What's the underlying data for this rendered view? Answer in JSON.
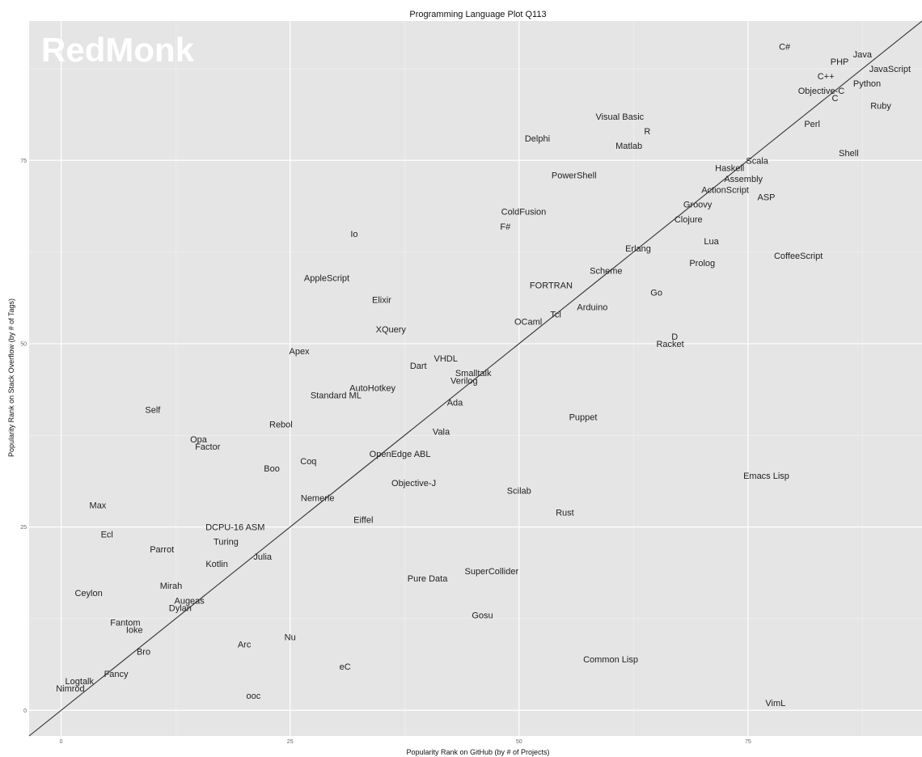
{
  "chart_data": {
    "type": "scatter",
    "title": "Programming Language Plot Q113",
    "watermark": "RedMonk",
    "xlabel": "Popularity Rank on GitHub (by # of Projects)",
    "ylabel": "Popularity Rank on Stack Overflow (by # of Tags)",
    "xlim": [
      -3.5,
      94
    ],
    "ylim": [
      -3.5,
      94
    ],
    "xticks": [
      0,
      25,
      50,
      75
    ],
    "yticks": [
      0,
      25,
      50,
      75
    ],
    "x_tick_labels": [
      "0",
      "25",
      "50",
      "75"
    ],
    "y_tick_labels": [
      "0",
      "25",
      "50",
      "75"
    ],
    "grid": true,
    "reference_line": "y = x",
    "colors": {
      "panel": "#e5e5e5",
      "grid": "#ffffff",
      "text": "#222222",
      "line": "#333333"
    },
    "points": [
      {
        "label": "C#",
        "x": 79,
        "y": 90.5
      },
      {
        "label": "PHP",
        "x": 85,
        "y": 88.5
      },
      {
        "label": "Java",
        "x": 87.5,
        "y": 89.5
      },
      {
        "label": "JavaScript",
        "x": 90.5,
        "y": 87.5
      },
      {
        "label": "C++",
        "x": 83.5,
        "y": 86.5
      },
      {
        "label": "Python",
        "x": 88,
        "y": 85.5
      },
      {
        "label": "Objective-C",
        "x": 83,
        "y": 84.5
      },
      {
        "label": "C",
        "x": 84.5,
        "y": 83.5
      },
      {
        "label": "Ruby",
        "x": 89.5,
        "y": 82.5
      },
      {
        "label": "Visual Basic",
        "x": 61,
        "y": 81
      },
      {
        "label": "R",
        "x": 64,
        "y": 79
      },
      {
        "label": "Perl",
        "x": 82,
        "y": 80
      },
      {
        "label": "Delphi",
        "x": 52,
        "y": 78
      },
      {
        "label": "Matlab",
        "x": 62,
        "y": 77
      },
      {
        "label": "Shell",
        "x": 86,
        "y": 76
      },
      {
        "label": "Scala",
        "x": 76,
        "y": 75
      },
      {
        "label": "Haskell",
        "x": 73,
        "y": 74
      },
      {
        "label": "PowerShell",
        "x": 56,
        "y": 73
      },
      {
        "label": "Assembly",
        "x": 74.5,
        "y": 72.5
      },
      {
        "label": "ActionScript",
        "x": 72.5,
        "y": 71
      },
      {
        "label": "ASP",
        "x": 77,
        "y": 70
      },
      {
        "label": "Groovy",
        "x": 69.5,
        "y": 69
      },
      {
        "label": "ColdFusion",
        "x": 50.5,
        "y": 68
      },
      {
        "label": "Clojure",
        "x": 68.5,
        "y": 67
      },
      {
        "label": "F#",
        "x": 48.5,
        "y": 66
      },
      {
        "label": "Io",
        "x": 32,
        "y": 65
      },
      {
        "label": "Lua",
        "x": 71,
        "y": 64
      },
      {
        "label": "Erlang",
        "x": 63,
        "y": 63
      },
      {
        "label": "CoffeeScript",
        "x": 80.5,
        "y": 62
      },
      {
        "label": "Prolog",
        "x": 70,
        "y": 61
      },
      {
        "label": "Scheme",
        "x": 59.5,
        "y": 60
      },
      {
        "label": "AppleScript",
        "x": 29,
        "y": 59
      },
      {
        "label": "FORTRAN",
        "x": 53.5,
        "y": 58
      },
      {
        "label": "Go",
        "x": 65,
        "y": 57
      },
      {
        "label": "Elixir",
        "x": 35,
        "y": 56
      },
      {
        "label": "Arduino",
        "x": 58,
        "y": 55
      },
      {
        "label": "Tcl",
        "x": 54,
        "y": 54
      },
      {
        "label": "OCaml",
        "x": 51,
        "y": 53
      },
      {
        "label": "XQuery",
        "x": 36,
        "y": 52
      },
      {
        "label": "D",
        "x": 67,
        "y": 51
      },
      {
        "label": "Racket",
        "x": 66.5,
        "y": 50
      },
      {
        "label": "Apex",
        "x": 26,
        "y": 49
      },
      {
        "label": "VHDL",
        "x": 42,
        "y": 48
      },
      {
        "label": "Dart",
        "x": 39,
        "y": 47
      },
      {
        "label": "Smalltalk",
        "x": 45,
        "y": 46
      },
      {
        "label": "Verilog",
        "x": 44,
        "y": 45
      },
      {
        "label": "AutoHotkey",
        "x": 34,
        "y": 44
      },
      {
        "label": "Standard ML",
        "x": 30,
        "y": 43
      },
      {
        "label": "Ada",
        "x": 43,
        "y": 42
      },
      {
        "label": "Self",
        "x": 10,
        "y": 41
      },
      {
        "label": "Puppet",
        "x": 57,
        "y": 40
      },
      {
        "label": "Rebol",
        "x": 24,
        "y": 39
      },
      {
        "label": "Vala",
        "x": 41.5,
        "y": 38
      },
      {
        "label": "Opa",
        "x": 15,
        "y": 37
      },
      {
        "label": "Factor",
        "x": 16,
        "y": 36
      },
      {
        "label": "OpenEdge ABL",
        "x": 37,
        "y": 35
      },
      {
        "label": "Coq",
        "x": 27,
        "y": 34
      },
      {
        "label": "Boo",
        "x": 23,
        "y": 33
      },
      {
        "label": "Emacs Lisp",
        "x": 77,
        "y": 32
      },
      {
        "label": "Objective-J",
        "x": 38.5,
        "y": 31
      },
      {
        "label": "Scilab",
        "x": 50,
        "y": 30
      },
      {
        "label": "Nemerle",
        "x": 28,
        "y": 29
      },
      {
        "label": "Max",
        "x": 4,
        "y": 28
      },
      {
        "label": "Rust",
        "x": 55,
        "y": 27
      },
      {
        "label": "Eiffel",
        "x": 33,
        "y": 26
      },
      {
        "label": "DCPU-16 ASM",
        "x": 19,
        "y": 25
      },
      {
        "label": "Ecl",
        "x": 5,
        "y": 24
      },
      {
        "label": "Turing",
        "x": 18,
        "y": 23
      },
      {
        "label": "Parrot",
        "x": 11,
        "y": 22
      },
      {
        "label": "Julia",
        "x": 22,
        "y": 21
      },
      {
        "label": "Kotlin",
        "x": 17,
        "y": 20
      },
      {
        "label": "SuperCollider",
        "x": 47,
        "y": 19
      },
      {
        "label": "Pure Data",
        "x": 40,
        "y": 18
      },
      {
        "label": "Mirah",
        "x": 12,
        "y": 17
      },
      {
        "label": "Ceylon",
        "x": 3,
        "y": 16
      },
      {
        "label": "Augeas",
        "x": 14,
        "y": 15
      },
      {
        "label": "Dylan",
        "x": 13,
        "y": 14
      },
      {
        "label": "Gosu",
        "x": 46,
        "y": 13
      },
      {
        "label": "Fantom",
        "x": 7,
        "y": 12
      },
      {
        "label": "Ioke",
        "x": 8,
        "y": 11
      },
      {
        "label": "Nu",
        "x": 25,
        "y": 10
      },
      {
        "label": "Arc",
        "x": 20,
        "y": 9
      },
      {
        "label": "Bro",
        "x": 9,
        "y": 8
      },
      {
        "label": "Common Lisp",
        "x": 60,
        "y": 7
      },
      {
        "label": "eC",
        "x": 31,
        "y": 6
      },
      {
        "label": "Fancy",
        "x": 6,
        "y": 5
      },
      {
        "label": "Logtalk",
        "x": 2,
        "y": 4
      },
      {
        "label": "Nimrod",
        "x": 1,
        "y": 3
      },
      {
        "label": "ooc",
        "x": 21,
        "y": 2
      },
      {
        "label": "VimL",
        "x": 78,
        "y": 1
      }
    ]
  }
}
